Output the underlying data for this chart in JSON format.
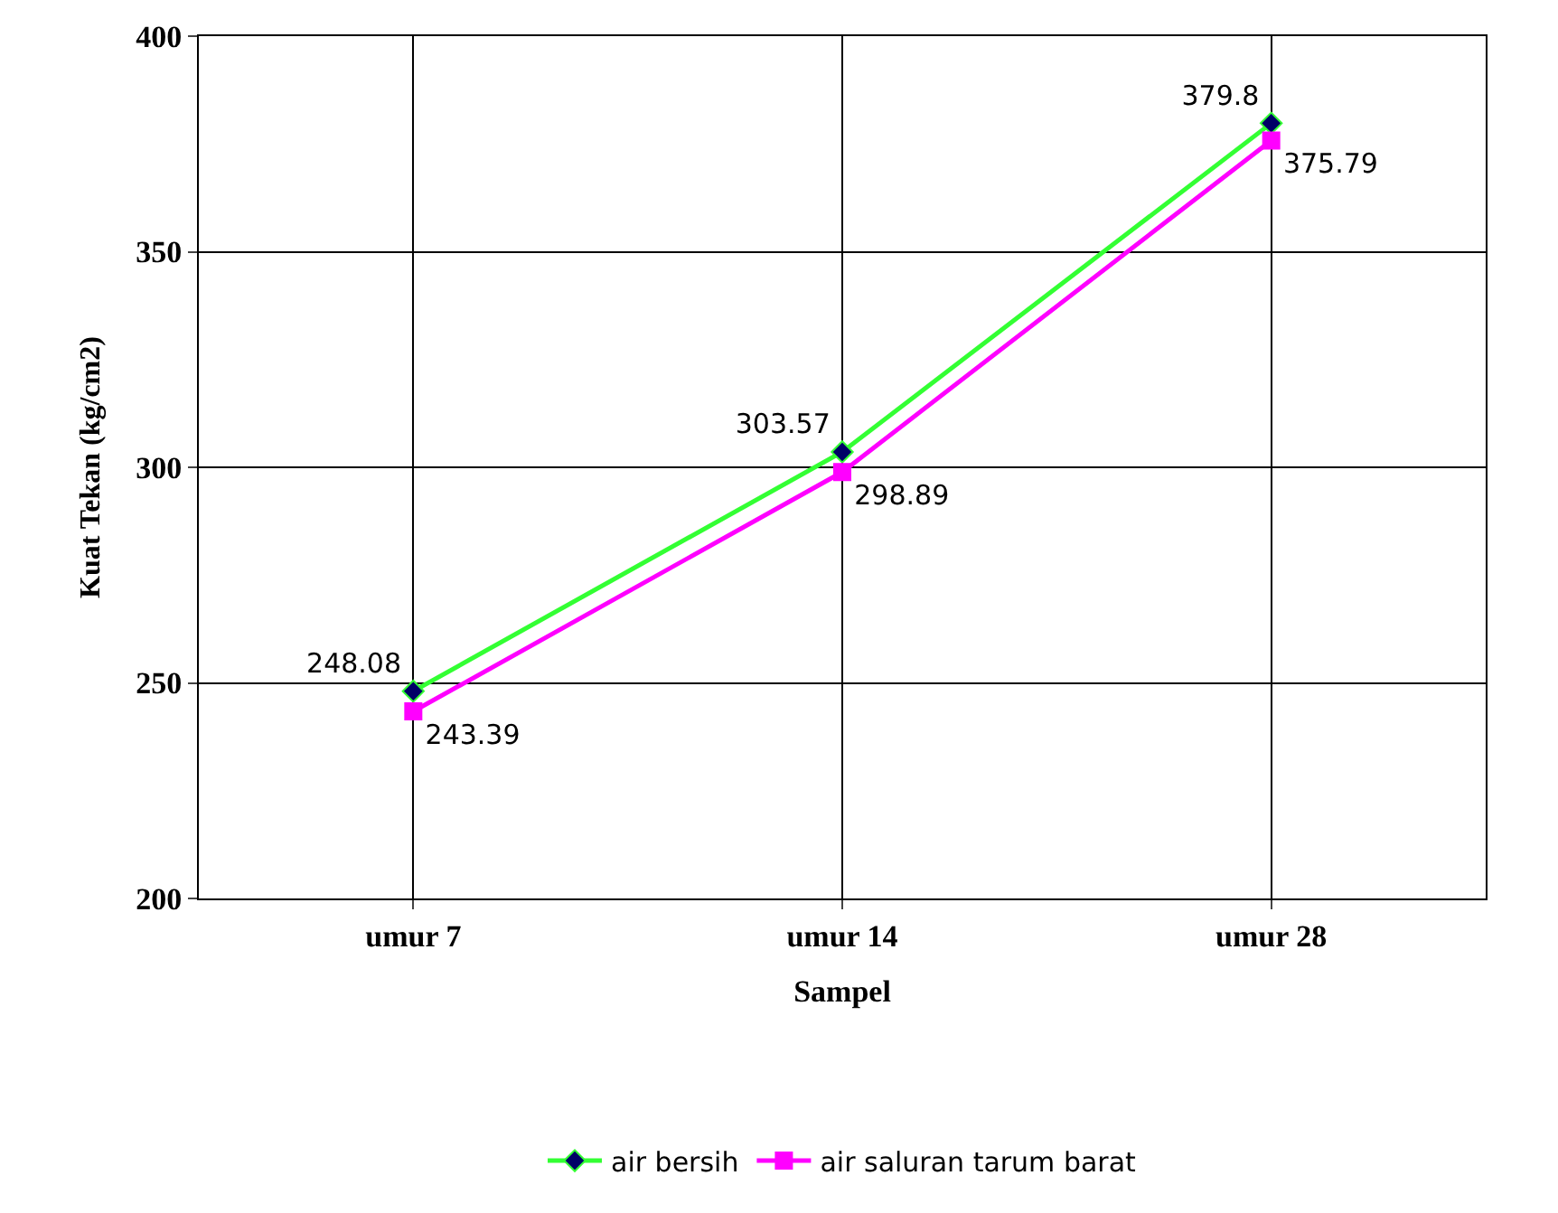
{
  "chart_data": {
    "type": "line",
    "xlabel": "Sampel",
    "ylabel": "Kuat Tekan (kg/cm2)",
    "categories": [
      "umur 7",
      "umur 14",
      "umur 28"
    ],
    "series": [
      {
        "name": "air bersih",
        "color": "#33ff33",
        "marker": "diamond",
        "values": [
          248.08,
          303.57,
          379.8
        ]
      },
      {
        "name": "air saluran tarum barat",
        "color": "#ff00ff",
        "marker": "square",
        "values": [
          243.39,
          298.89,
          375.79
        ]
      }
    ],
    "ylim": [
      200,
      400
    ],
    "yticks": [
      200,
      250,
      300,
      350,
      400
    ],
    "grid": true,
    "legend": "bottom",
    "data_labels": true
  }
}
